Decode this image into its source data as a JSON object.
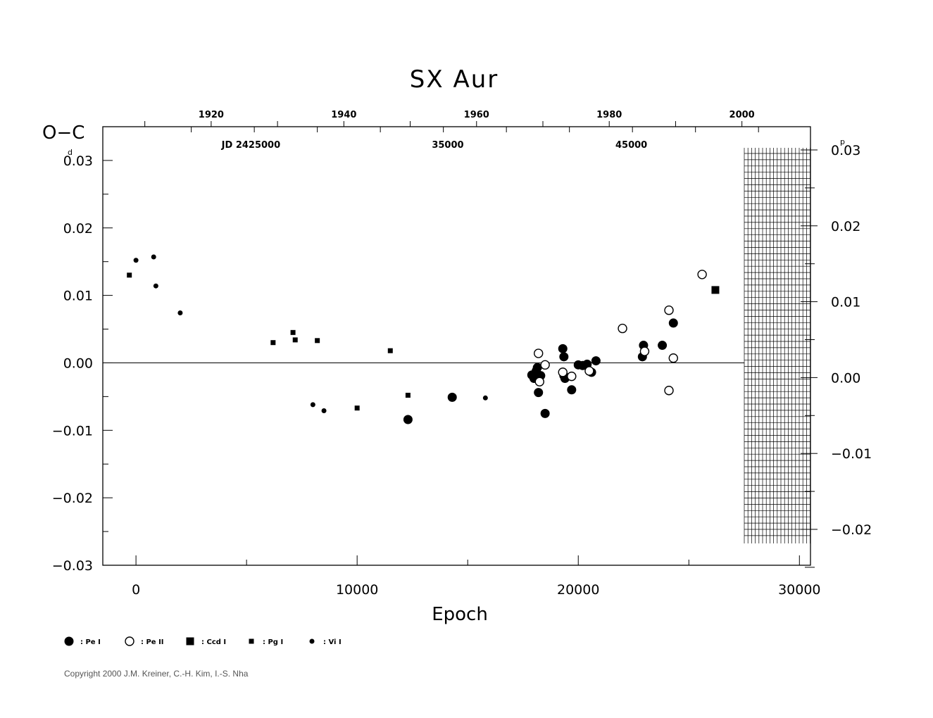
{
  "chart_data": {
    "type": "scatter",
    "title": "SX  Aur",
    "ylabel": "O−C",
    "ylabel_unit": "d",
    "xlabel": "Epoch",
    "xlim": [
      -1500,
      30500
    ],
    "ylim": [
      -0.03,
      0.04
    ],
    "x_ticks": [
      {
        "value": 0,
        "label": "0"
      },
      {
        "value": 10000,
        "label": "10000"
      },
      {
        "value": 20000,
        "label": "20000"
      },
      {
        "value": 30000,
        "label": "30000"
      }
    ],
    "y_ticks": [
      {
        "value": 0.03,
        "label": "0.03"
      },
      {
        "value": 0.02,
        "label": "0.02"
      },
      {
        "value": 0.01,
        "label": "0.01"
      },
      {
        "value": 0.0,
        "label": "0.00"
      },
      {
        "value": -0.01,
        "label": "−0.01"
      },
      {
        "value": -0.02,
        "label": "−0.02"
      },
      {
        "value": -0.03,
        "label": "−0.03"
      }
    ],
    "right_axis": {
      "unit": "p",
      "ticks": [
        {
          "value": 0.03,
          "label": "0.03"
        },
        {
          "value": 0.02,
          "label": "0.02"
        },
        {
          "value": 0.01,
          "label": "0.01"
        },
        {
          "value": 0.0,
          "label": "0.00"
        },
        {
          "value": -0.01,
          "label": "−0.01"
        },
        {
          "value": -0.02,
          "label": "−0.02"
        }
      ]
    },
    "top_year_ticks": [
      {
        "epoch": 3400,
        "label": "1920"
      },
      {
        "epoch": 9400,
        "label": "1940"
      },
      {
        "epoch": 15400,
        "label": "1960"
      },
      {
        "epoch": 21400,
        "label": "1980"
      },
      {
        "epoch": 27400,
        "label": "2000"
      }
    ],
    "top_jd_labels": [
      {
        "epoch": 5200,
        "label": "JD  2425000"
      },
      {
        "epoch": 14100,
        "label": "35000"
      },
      {
        "epoch": 22400,
        "label": "45000"
      }
    ],
    "zero_line": true,
    "series": [
      {
        "name": "Pe I",
        "marker": "filled-circle-large",
        "points": [
          [
            12300,
            -0.0084
          ],
          [
            14300,
            -0.0051
          ],
          [
            17900,
            -0.0018
          ],
          [
            18000,
            -0.0023
          ],
          [
            18100,
            -0.0012
          ],
          [
            18150,
            -0.0007
          ],
          [
            18200,
            -0.0044
          ],
          [
            18300,
            -0.0019
          ],
          [
            18500,
            -0.0075
          ],
          [
            19300,
            0.0021
          ],
          [
            19350,
            0.0009
          ],
          [
            19350,
            -0.0019
          ],
          [
            19400,
            -0.0023
          ],
          [
            19700,
            -0.004
          ],
          [
            20000,
            -0.0003
          ],
          [
            20200,
            -0.0004
          ],
          [
            20400,
            -0.0002
          ],
          [
            20600,
            -0.0014
          ],
          [
            20800,
            0.0003
          ],
          [
            22900,
            0.0009
          ],
          [
            22950,
            0.0026
          ],
          [
            23800,
            0.0026
          ],
          [
            24300,
            0.0059
          ]
        ]
      },
      {
        "name": "Pe II",
        "marker": "open-circle-large",
        "points": [
          [
            18200,
            0.0014
          ],
          [
            18250,
            -0.0028
          ],
          [
            18500,
            -0.0003
          ],
          [
            19300,
            -0.0014
          ],
          [
            19700,
            -0.002
          ],
          [
            20500,
            -0.0012
          ],
          [
            22000,
            0.0051
          ],
          [
            23000,
            0.0017
          ],
          [
            24100,
            0.0078
          ],
          [
            24100,
            -0.0041
          ],
          [
            24300,
            0.0007
          ],
          [
            25600,
            0.0131
          ]
        ]
      },
      {
        "name": "Ccd I",
        "marker": "filled-square-large",
        "points": [
          [
            26200,
            0.0108
          ]
        ]
      },
      {
        "name": "Pg I",
        "marker": "filled-square-small",
        "points": [
          [
            -300,
            0.013
          ],
          [
            6200,
            0.003
          ],
          [
            7100,
            0.0045
          ],
          [
            7200,
            0.0034
          ],
          [
            8200,
            0.0033
          ],
          [
            10000,
            -0.0067
          ],
          [
            11500,
            0.0018
          ],
          [
            12300,
            -0.0048
          ]
        ]
      },
      {
        "name": "Vi I",
        "marker": "filled-circle-small",
        "points": [
          [
            0,
            0.0152
          ],
          [
            800,
            0.0157
          ],
          [
            900,
            0.0114
          ],
          [
            2000,
            0.0074
          ],
          [
            8000,
            -0.0062
          ],
          [
            8500,
            -0.0071
          ],
          [
            15800,
            -0.0052
          ]
        ]
      }
    ],
    "legend": {
      "placement": "bottom-left",
      "entries": [
        {
          "marker": "filled-circle-large",
          "label": ": Pe I"
        },
        {
          "marker": "open-circle-large",
          "label": ": Pe II"
        },
        {
          "marker": "filled-square-large",
          "label": ": Ccd I"
        },
        {
          "marker": "filled-square-small",
          "label": ": Pg I"
        },
        {
          "marker": "filled-circle-small",
          "label": ": Vi I"
        }
      ]
    },
    "copyright": "Copyright 2000 J.M. Kreiner, C.-H. Kim, I.-S. Nha"
  }
}
